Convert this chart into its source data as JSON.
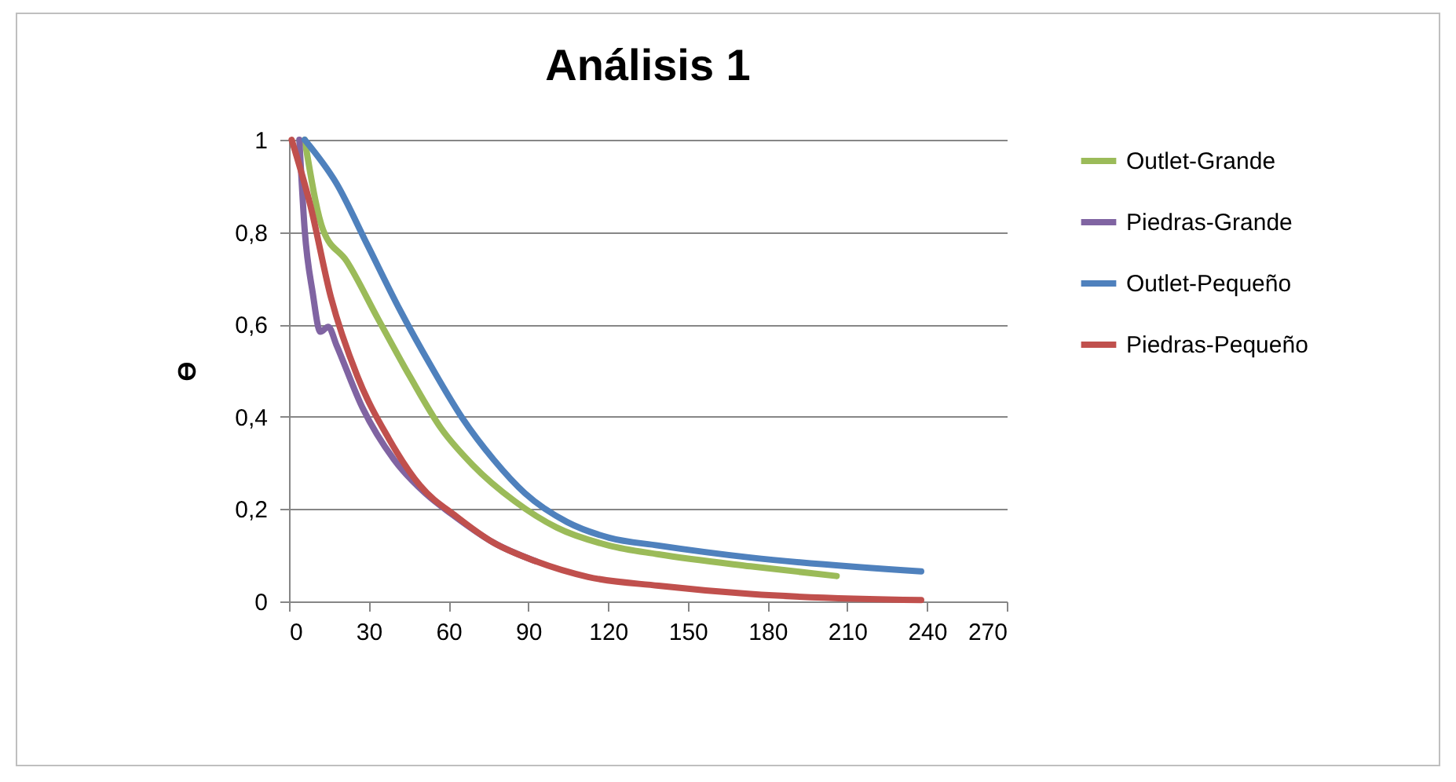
{
  "chart_data": {
    "type": "line",
    "title": "Análisis 1",
    "ylabel": "ϴ",
    "xlim": [
      0,
      270
    ],
    "xticks": [
      0,
      30,
      60,
      90,
      120,
      150,
      180,
      210,
      240,
      270
    ],
    "ylim": [
      0,
      1
    ],
    "yticks": [
      0,
      {
        "value": 0.2,
        "label": "0,2"
      },
      {
        "value": 0.4,
        "label": "0,4"
      },
      {
        "value": 0.6,
        "label": "0,6"
      },
      {
        "value": 0.8,
        "label": "0,8"
      },
      1
    ],
    "grid": "y",
    "legend": "right",
    "marker": "none",
    "line_style": "solid",
    "series": [
      {
        "name": "Outlet-Grande",
        "color": "#9bbb59",
        "x": [
          5.9,
          12.8,
          21.7,
          33.5,
          45.4,
          57.2,
          69,
          84.9,
          100.7,
          120.4,
          139,
          173.6,
          206
        ],
        "values": [
          1,
          0.805,
          0.737,
          0.612,
          0.488,
          0.375,
          0.296,
          0.217,
          0.16,
          0.121,
          0.102,
          0.076,
          0.055
        ]
      },
      {
        "name": "Piedras-Grande",
        "color": "#8064a2",
        "x": [
          3.9,
          5.9,
          8.9,
          11.8,
          14.8,
          17.8,
          27.6,
          39.5,
          51.3,
          61.2,
          77,
          92.8
        ],
        "values": [
          1,
          0.805,
          0.669,
          0.584,
          0.595,
          0.556,
          0.42,
          0.307,
          0.234,
          0.189,
          0.127,
          0.087
        ]
      },
      {
        "name": "Outlet-Pequeño",
        "color": "#4f81bd",
        "x": [
          5.9,
          17.8,
          29.6,
          41.4,
          53.3,
          65.1,
          77,
          88.8,
          104.6,
          120.4,
          139,
          173.6,
          237.8
        ],
        "values": [
          1,
          0.906,
          0.771,
          0.635,
          0.511,
          0.398,
          0.307,
          0.234,
          0.172,
          0.138,
          0.121,
          0.095,
          0.065
        ]
      },
      {
        "name": "Piedras-Pequeño",
        "color": "#c0504d",
        "x": [
          1,
          7.9,
          15.8,
          25.7,
          37.5,
          49.3,
          63.2,
          77,
          92.8,
          112.5,
          139,
          173.6,
          237.8
        ],
        "values": [
          1,
          0.861,
          0.658,
          0.488,
          0.353,
          0.251,
          0.183,
          0.127,
          0.087,
          0.053,
          0.034,
          0.016,
          0.003
        ]
      }
    ]
  }
}
